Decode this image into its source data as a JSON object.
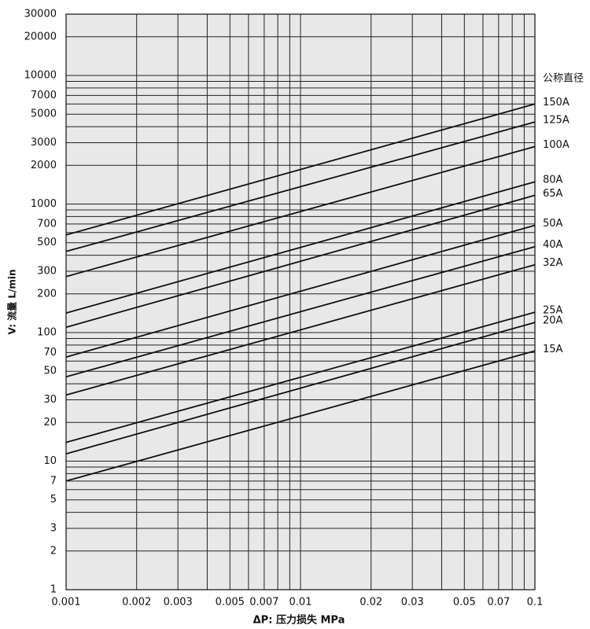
{
  "chart_data": {
    "type": "line",
    "x_label": "ΔP: 压力损失 MPa",
    "y_label": "V: 流量 L/min",
    "legend_title": "公称直径",
    "x_scale": "log",
    "y_scale": "log",
    "grid": true,
    "background": "#e8e8e8",
    "line_color": "#111111",
    "xlim": [
      0.001,
      0.1
    ],
    "ylim": [
      1,
      30000
    ],
    "xticks": [
      0.001,
      0.002,
      0.003,
      0.005,
      0.007,
      0.01,
      0.02,
      0.03,
      0.05,
      0.07,
      0.1
    ],
    "x_minor_ticks": [
      0.004,
      0.006,
      0.008,
      0.009,
      0.04,
      0.06,
      0.08,
      0.09
    ],
    "yticks": [
      1,
      2,
      3,
      5,
      7,
      10,
      20,
      30,
      50,
      70,
      100,
      200,
      300,
      500,
      700,
      1000,
      2000,
      3000,
      5000,
      7000,
      10000,
      20000,
      30000
    ],
    "y_minor_ticks": [
      4,
      6,
      8,
      9,
      40,
      60,
      80,
      90,
      400,
      600,
      800,
      900,
      4000,
      6000,
      8000,
      9000
    ],
    "x": [
      0.001,
      0.1
    ],
    "series": [
      {
        "name": "150A",
        "values": [
          575,
          6000
        ]
      },
      {
        "name": "125A",
        "values": [
          428,
          4350
        ]
      },
      {
        "name": "100A",
        "values": [
          273,
          2800
        ]
      },
      {
        "name": "80A",
        "values": [
          142,
          1490
        ]
      },
      {
        "name": "65A",
        "values": [
          110,
          1170
        ]
      },
      {
        "name": "50A",
        "values": [
          64.5,
          683
        ]
      },
      {
        "name": "40A",
        "values": [
          45.3,
          466
        ]
      },
      {
        "name": "32A",
        "values": [
          32.7,
          337
        ]
      },
      {
        "name": "25A",
        "values": [
          14,
          144
        ]
      },
      {
        "name": "20A",
        "values": [
          11.4,
          120
        ]
      },
      {
        "name": "15A",
        "values": [
          7,
          72
        ]
      }
    ]
  }
}
